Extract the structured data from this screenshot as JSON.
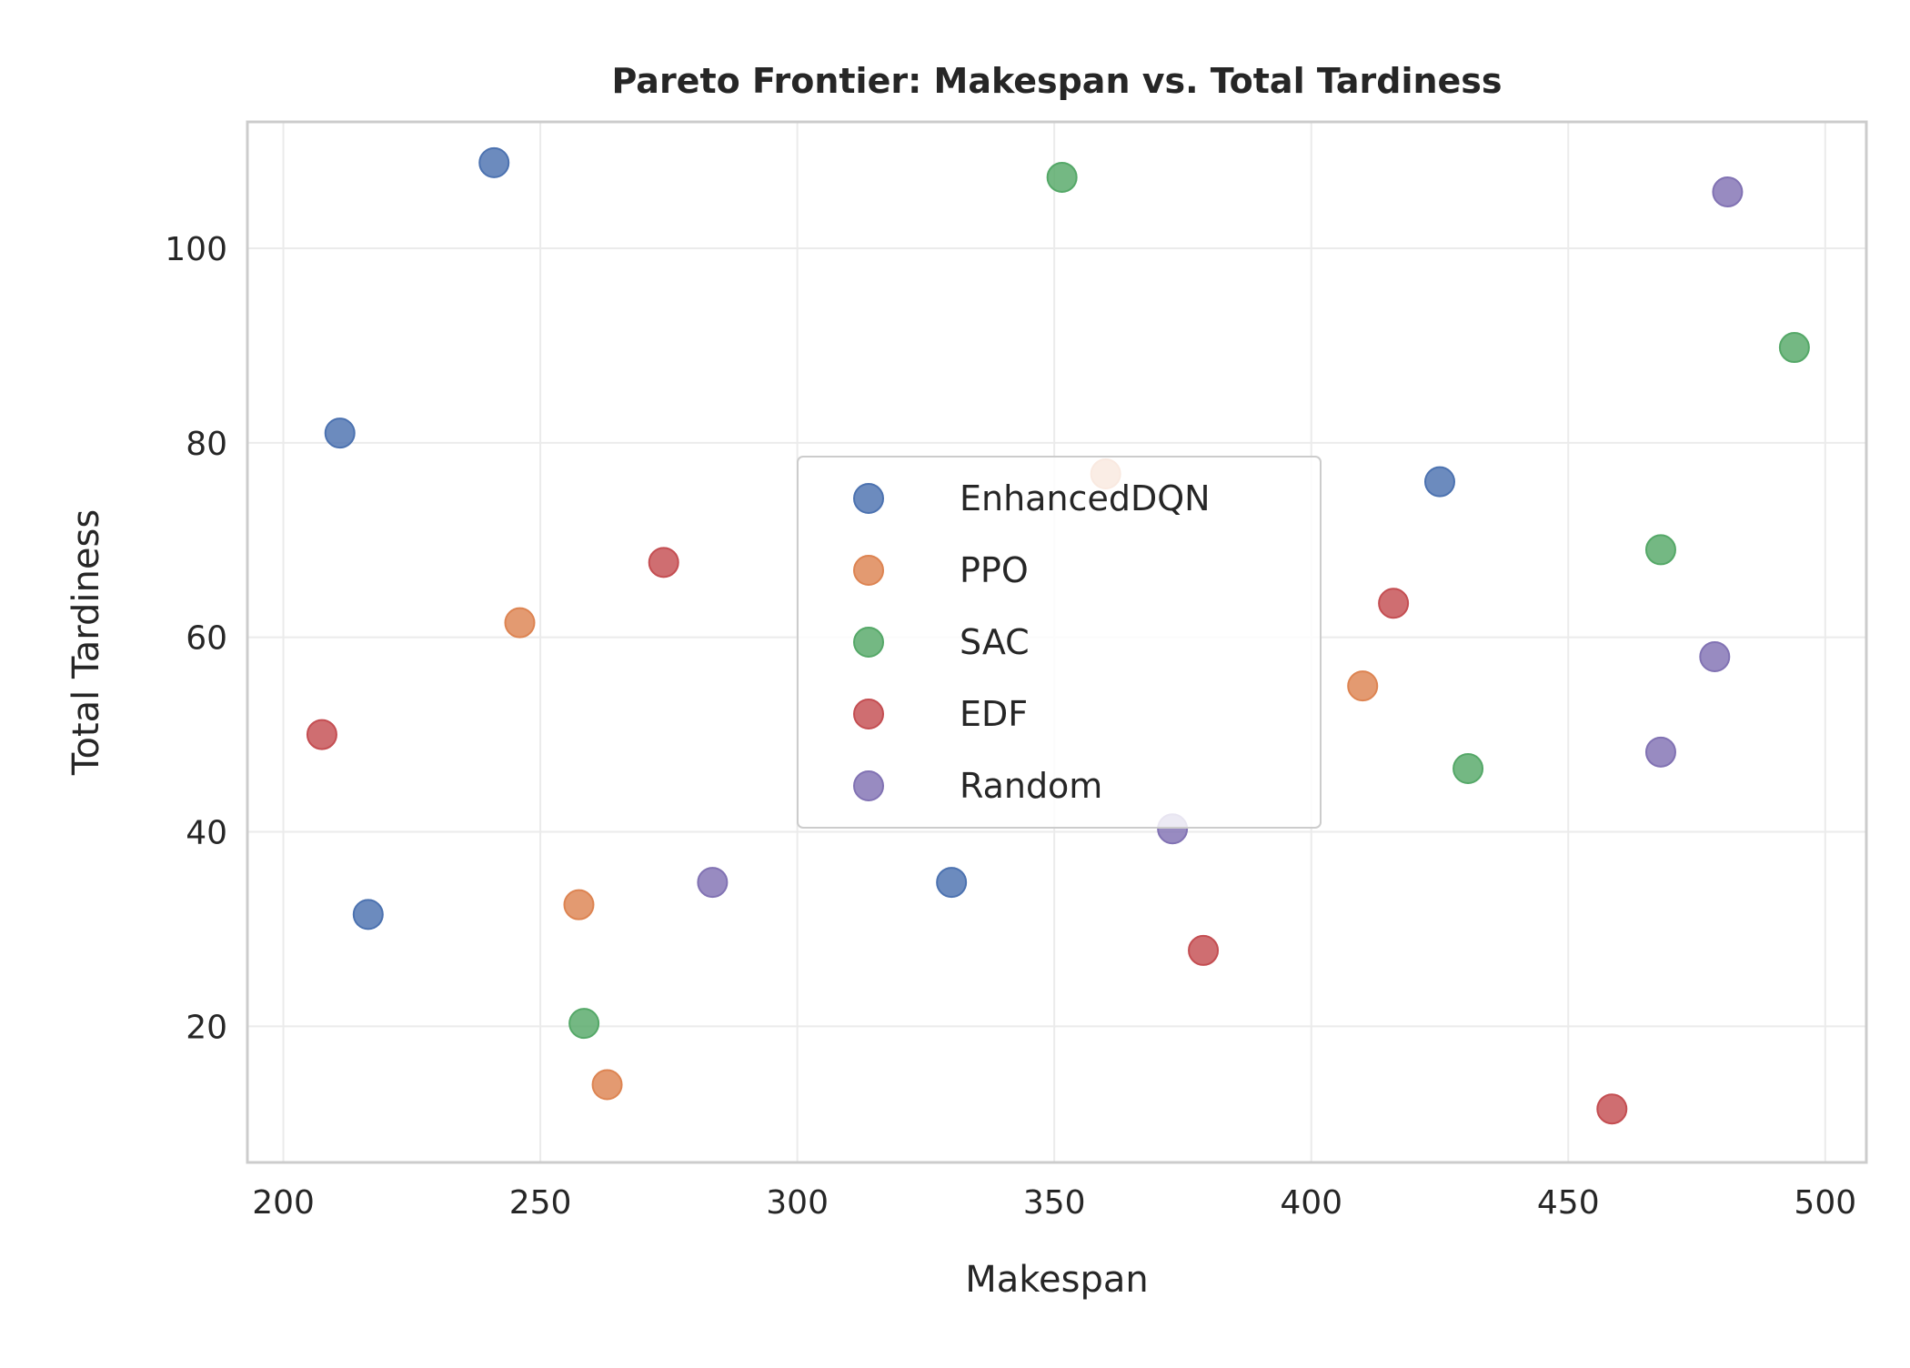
{
  "chart_data": {
    "type": "scatter",
    "title": "Pareto Frontier: Makespan vs. Total Tardiness",
    "xlabel": "Makespan",
    "ylabel": "Total Tardiness",
    "xlim": [
      193,
      508
    ],
    "ylim": [
      6,
      113
    ],
    "xticks": [
      200,
      250,
      300,
      350,
      400,
      450,
      500
    ],
    "yticks": [
      20,
      40,
      60,
      80,
      100
    ],
    "grid": true,
    "legend_position": "center",
    "series": [
      {
        "name": "EnhancedDQN",
        "color": "#4c72b0",
        "points": [
          [
            241,
            108.8
          ],
          [
            211,
            81
          ],
          [
            425,
            76
          ],
          [
            330,
            34.8
          ],
          [
            216.5,
            31.5
          ]
        ]
      },
      {
        "name": "PPO",
        "color": "#dd8452",
        "points": [
          [
            360,
            76.8
          ],
          [
            246,
            61.5
          ],
          [
            410,
            55
          ],
          [
            257.5,
            32.5
          ],
          [
            263,
            14
          ]
        ]
      },
      {
        "name": "SAC",
        "color": "#55a868",
        "points": [
          [
            351.5,
            107.3
          ],
          [
            494,
            89.8
          ],
          [
            468,
            69
          ],
          [
            430.5,
            46.5
          ],
          [
            258.5,
            20.3
          ]
        ]
      },
      {
        "name": "EDF",
        "color": "#c44e52",
        "points": [
          [
            274,
            67.7
          ],
          [
            416,
            63.5
          ],
          [
            207.5,
            50
          ],
          [
            379,
            27.8
          ],
          [
            458.5,
            11.5
          ]
        ]
      },
      {
        "name": "Random",
        "color": "#8172b3",
        "points": [
          [
            481,
            105.8
          ],
          [
            478.5,
            58
          ],
          [
            468,
            48.2
          ],
          [
            373,
            40.3
          ],
          [
            283.5,
            34.8
          ]
        ]
      }
    ]
  }
}
